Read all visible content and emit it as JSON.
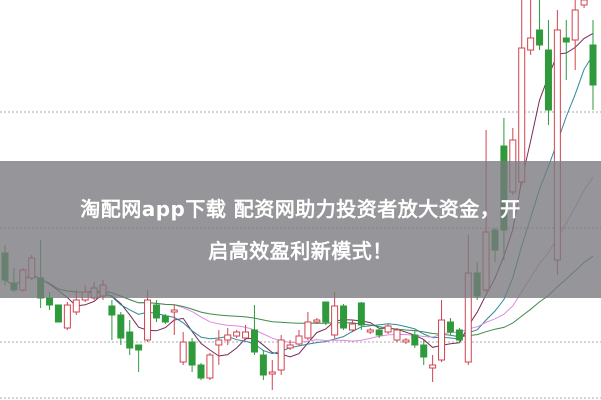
{
  "banner": {
    "line1": "淘配网app下载 配资网助力投资者放大资金，开",
    "line2": "启高效盈利新模式！"
  },
  "chart_data": {
    "type": "candlestick",
    "ylim": [
      0,
      400
    ],
    "grid": "horizontal dashed",
    "up_color": "#d0434f",
    "down_color": "#2e9a3c",
    "moving_averages": [
      {
        "period": 5,
        "color": "#7a2a5a"
      },
      {
        "period": 10,
        "color": "#2c8a9a"
      },
      {
        "period": 20,
        "color": "#e08ae0"
      },
      {
        "period": 40,
        "color": "#3f8a4a"
      }
    ],
    "candles": [
      [
        147,
        155,
        115,
        120
      ],
      [
        117,
        132,
        108,
        110
      ],
      [
        110,
        132,
        108,
        130
      ],
      [
        122,
        145,
        120,
        142
      ],
      [
        122,
        160,
        92,
        102
      ],
      [
        102,
        108,
        90,
        95
      ],
      [
        95,
        95,
        78,
        78
      ],
      [
        72,
        98,
        70,
        95
      ],
      [
        88,
        110,
        85,
        100
      ],
      [
        100,
        115,
        98,
        108
      ],
      [
        102,
        118,
        100,
        112
      ],
      [
        104,
        120,
        100,
        115
      ],
      [
        94,
        100,
        60,
        85
      ],
      [
        85,
        88,
        55,
        62
      ],
      [
        68,
        80,
        45,
        52
      ],
      [
        55,
        55,
        28,
        50
      ],
      [
        60,
        110,
        58,
        100
      ],
      [
        95,
        100,
        78,
        82
      ],
      [
        84,
        86,
        76,
        78
      ],
      [
        88,
        95,
        65,
        90
      ],
      [
        38,
        68,
        35,
        58
      ],
      [
        58,
        62,
        28,
        35
      ],
      [
        35,
        37,
        20,
        22
      ],
      [
        22,
        47,
        20,
        45
      ],
      [
        55,
        70,
        35,
        60
      ],
      [
        60,
        72,
        55,
        65
      ],
      [
        64,
        70,
        62,
        68
      ],
      [
        62,
        75,
        60,
        68
      ],
      [
        70,
        95,
        45,
        48
      ],
      [
        45,
        50,
        20,
        25
      ],
      [
        26,
        40,
        10,
        28
      ],
      [
        30,
        65,
        25,
        60
      ],
      [
        52,
        60,
        50,
        55
      ],
      [
        56,
        70,
        54,
        64
      ],
      [
        62,
        88,
        60,
        78
      ],
      [
        78,
        82,
        76,
        80
      ],
      [
        98,
        98,
        75,
        78
      ],
      [
        65,
        108,
        62,
        94
      ],
      [
        94,
        96,
        70,
        72
      ],
      [
        70,
        80,
        68,
        76
      ],
      [
        97,
        98,
        70,
        75
      ],
      [
        68,
        72,
        66,
        70
      ],
      [
        70,
        72,
        62,
        65
      ],
      [
        68,
        76,
        66,
        74
      ],
      [
        60,
        72,
        58,
        70
      ],
      [
        58,
        62,
        56,
        60
      ],
      [
        65,
        70,
        52,
        55
      ],
      [
        55,
        60,
        35,
        43
      ],
      [
        32,
        45,
        18,
        35
      ],
      [
        40,
        100,
        38,
        80
      ],
      [
        78,
        82,
        65,
        68
      ],
      [
        70,
        72,
        58,
        60
      ],
      [
        38,
        165,
        35,
        127
      ],
      [
        127,
        138,
        100,
        104
      ],
      [
        110,
        270,
        108,
        168
      ],
      [
        170,
        172,
        138,
        150
      ],
      [
        254,
        282,
        140,
        170
      ],
      [
        208,
        272,
        205,
        260
      ],
      [
        218,
        400,
        215,
        352
      ],
      [
        350,
        400,
        345,
        362
      ],
      [
        370,
        400,
        350,
        355
      ],
      [
        350,
        380,
        275,
        290
      ],
      [
        140,
        390,
        125,
        370
      ],
      [
        362,
        380,
        320,
        358
      ],
      [
        360,
        400,
        330,
        390
      ],
      [
        395,
        400,
        392,
        400
      ],
      [
        355,
        380,
        290,
        315
      ]
    ]
  }
}
